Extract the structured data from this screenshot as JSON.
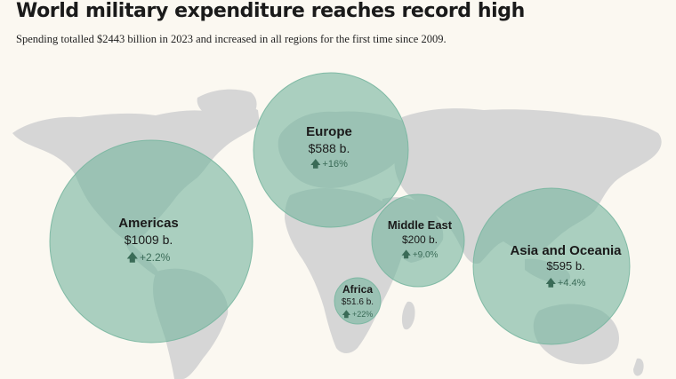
{
  "header": {
    "title": "World military expenditure reaches record high",
    "subtitle": "Spending totalled $2443 billion in 2023 and increased in all regions for the first time since 2009."
  },
  "regions": [
    {
      "name": "Americas",
      "spending": "$1009 b.",
      "change": "+2.2%"
    },
    {
      "name": "Europe",
      "spending": "$588 b.",
      "change": "+16%"
    },
    {
      "name": "Middle East",
      "spending": "$200 b.",
      "change": "+9.0%"
    },
    {
      "name": "Africa",
      "spending": "$51.6 b.",
      "change": "+22%"
    },
    {
      "name": "Asia and Oceania",
      "spending": "$595 b.",
      "change": "+4.4%"
    }
  ],
  "colors": {
    "bubble": "#78b6a0",
    "land": "#d6d6d6",
    "background": "#fbf8f1",
    "arrow": "#3a6b57"
  },
  "icons": {
    "increase": "up-arrow-icon"
  }
}
